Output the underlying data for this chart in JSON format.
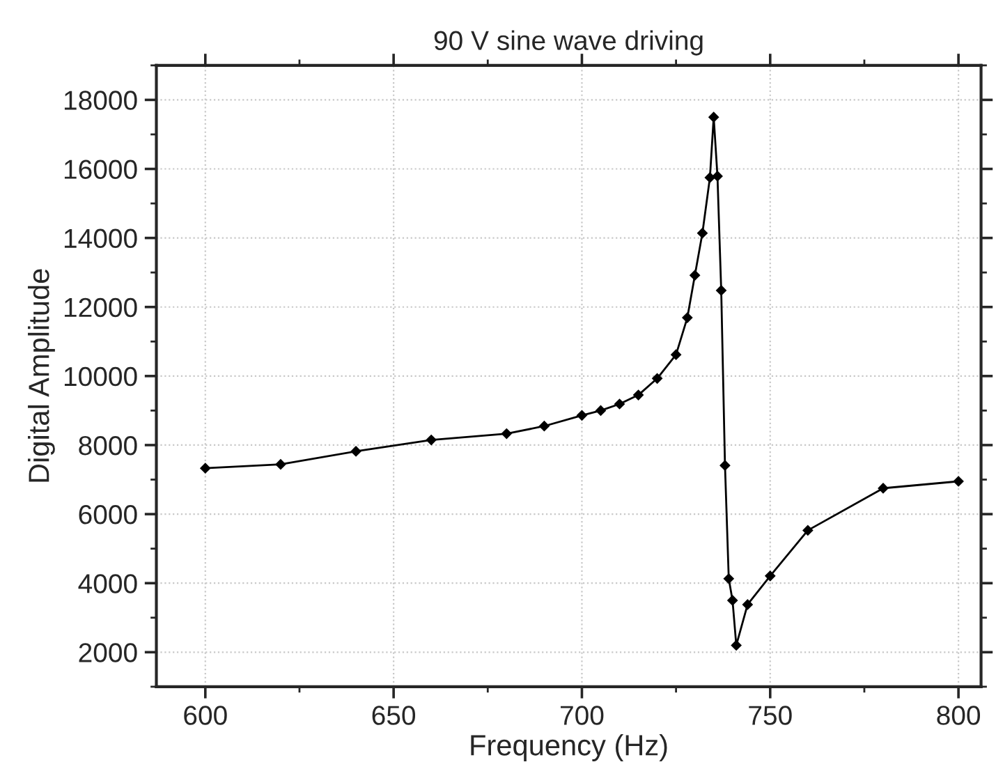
{
  "chart_data": {
    "type": "line",
    "title": "90 V sine wave driving",
    "xlabel": "Frequency (Hz)",
    "ylabel": "Digital Amplitude",
    "x": [
      600,
      620,
      640,
      660,
      680,
      690,
      700,
      705,
      710,
      715,
      720,
      725,
      728,
      730,
      732,
      734,
      735,
      736,
      737,
      738,
      739,
      740,
      741,
      744,
      750,
      760,
      780,
      800
    ],
    "series": [
      {
        "color": "#000000",
        "values": [
          7330,
          7440,
          7820,
          8150,
          8330,
          8550,
          8860,
          9000,
          9190,
          9450,
          9930,
          10620,
          11690,
          12920,
          14140,
          15750,
          17500,
          15790,
          12480,
          7410,
          4130,
          3500,
          2200,
          3380,
          4210,
          5530,
          6750,
          6950
        ]
      }
    ],
    "xlim": [
      587,
      806
    ],
    "ylim": [
      1000,
      19000
    ],
    "xticks": [
      600,
      650,
      700,
      750,
      800
    ],
    "yticks": [
      2000,
      4000,
      6000,
      8000,
      10000,
      12000,
      14000,
      16000,
      18000
    ],
    "grid": true,
    "marker": "diamond",
    "line_style": "solid"
  }
}
